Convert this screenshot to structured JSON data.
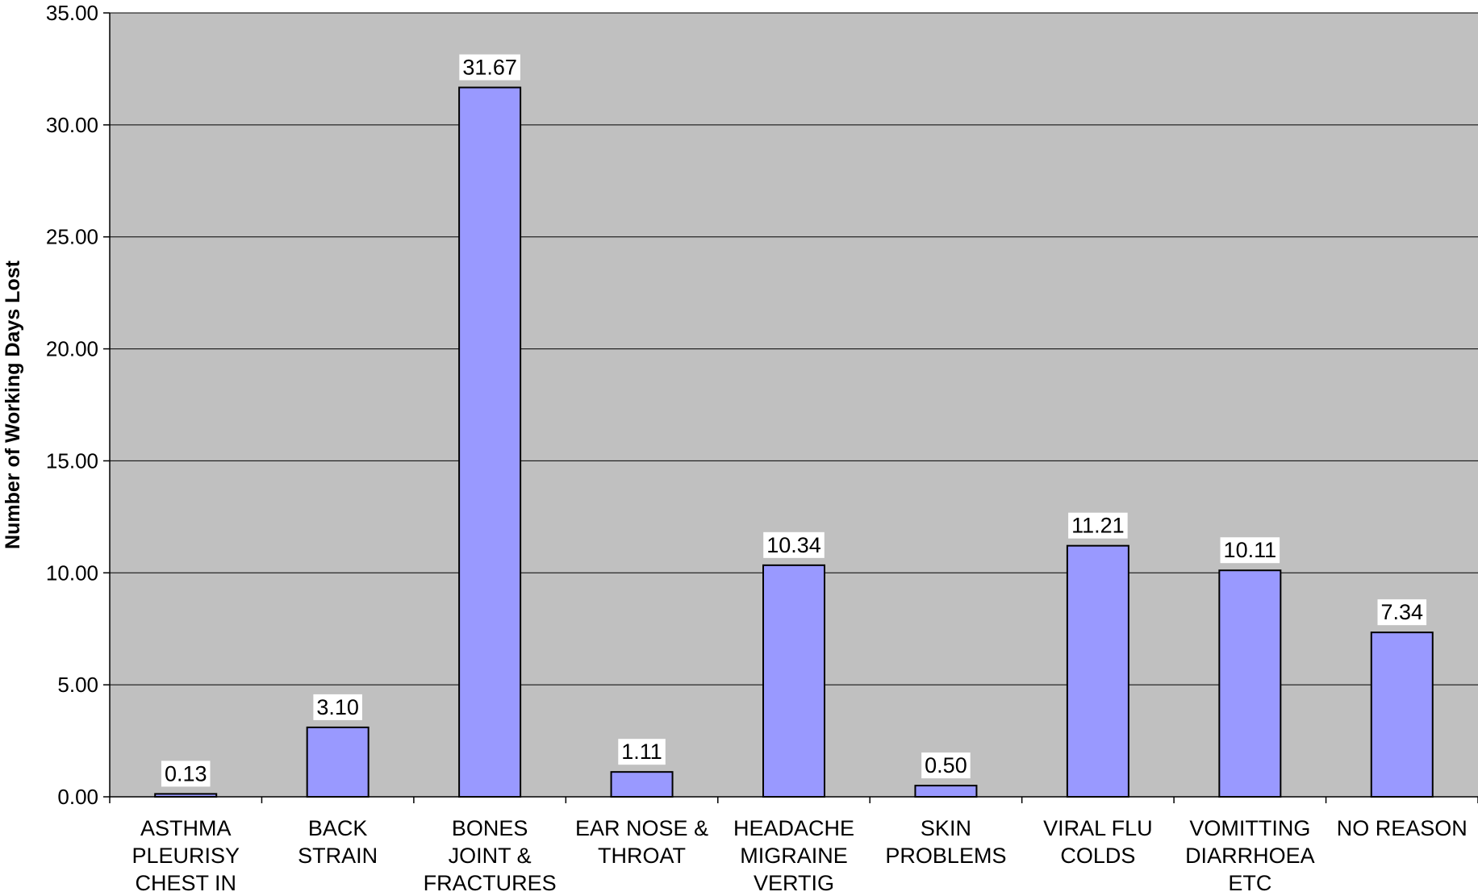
{
  "chart_data": {
    "type": "bar",
    "title": "",
    "xlabel": "",
    "ylabel": "Number of Working Days Lost",
    "ylim": [
      0,
      35
    ],
    "yticks": [
      "0.00",
      "5.00",
      "10.00",
      "15.00",
      "20.00",
      "25.00",
      "30.00",
      "35.00"
    ],
    "grid": true,
    "legend": "none",
    "categories": [
      [
        "ASTHMA",
        "PLEURISY",
        "CHEST IN"
      ],
      [
        "BACK",
        "STRAIN"
      ],
      [
        "BONES",
        "JOINT &",
        "FRACTURES"
      ],
      [
        "EAR NOSE &",
        "THROAT"
      ],
      [
        "HEADACHE",
        "MIGRAINE",
        "VERTIG"
      ],
      [
        "SKIN",
        "PROBLEMS"
      ],
      [
        "VIRAL FLU",
        "COLDS"
      ],
      [
        "VOMITTING",
        "DIARRHOEA",
        "ETC"
      ],
      [
        "NO REASON"
      ]
    ],
    "values": [
      0.13,
      3.1,
      31.67,
      1.11,
      10.34,
      0.5,
      11.21,
      10.11,
      7.34
    ],
    "data_labels": [
      "0.13",
      "3.10",
      "31.67",
      "1.11",
      "10.34",
      "0.50",
      "11.21",
      "10.11",
      "7.34"
    ],
    "colors": {
      "plot_background": "#c0c0c0",
      "bar_fill": "#9999ff",
      "bar_stroke": "#000000",
      "gridline": "#000000"
    }
  }
}
